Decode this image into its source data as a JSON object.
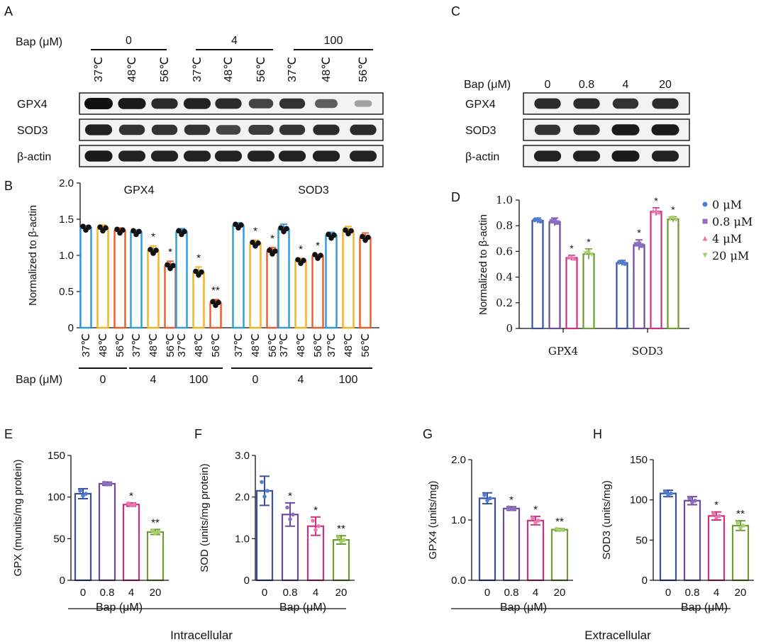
{
  "colors": {
    "navy": "#3a4fa0",
    "purple": "#6e4a9c",
    "magenta": "#d0317e",
    "olive": "#6f9a36",
    "blue": "#2a9bd8",
    "yellow": "#f5b21f",
    "orange": "#ee5a25",
    "dot": "#111111",
    "blue_dot": "#4f7fd0",
    "purple_dot": "#8a6fc0",
    "pink_dot": "#e87ab0",
    "green_dot": "#a8cf6f",
    "band": "#111111",
    "blot_bg": "#f3f3f3"
  },
  "blot_a": {
    "panel_label": "A",
    "bap_label": "Bap (μM)",
    "groups": [
      "0",
      "4",
      "100"
    ],
    "lanes": [
      "37℃",
      "48℃",
      "56℃",
      "37℃",
      "48℃",
      "56℃",
      "37℃",
      "48℃",
      "56℃"
    ],
    "rows": [
      {
        "name": "GPX4",
        "intensity": [
          1.0,
          0.95,
          0.85,
          0.9,
          0.85,
          0.7,
          0.8,
          0.55,
          0.15
        ]
      },
      {
        "name": "SOD3",
        "intensity": [
          0.9,
          0.8,
          0.8,
          0.8,
          0.7,
          0.75,
          0.8,
          0.85,
          0.85
        ]
      },
      {
        "name": "β-actin",
        "intensity": [
          0.95,
          0.9,
          0.9,
          0.9,
          0.9,
          0.9,
          0.9,
          0.9,
          0.9
        ]
      }
    ]
  },
  "blot_c": {
    "panel_label": "C",
    "bap_label": "Bap (μM)",
    "lanes": [
      "0",
      "0.8",
      "4",
      "20"
    ],
    "rows": [
      {
        "name": "GPX4",
        "intensity": [
          0.85,
          0.85,
          0.8,
          0.85
        ]
      },
      {
        "name": "SOD3",
        "intensity": [
          0.8,
          0.85,
          0.95,
          0.95
        ]
      },
      {
        "name": "β-actin",
        "intensity": [
          0.9,
          0.9,
          0.95,
          0.9
        ]
      }
    ]
  },
  "chart_data": [
    {
      "id": "B",
      "panel_label": "B",
      "type": "bar",
      "ylabel": "Normalized to β-actin",
      "ylim": [
        0,
        2.0
      ],
      "yticks": [
        "0",
        "0.5",
        "1.0",
        "1.5",
        "2.0"
      ],
      "ytick_values": [
        0,
        0.5,
        1.0,
        1.5,
        2.0
      ],
      "titles": [
        "GPX4",
        "SOD3"
      ],
      "temps": [
        "37℃",
        "48℃",
        "56℃"
      ],
      "bap_label": "Bap (μM)",
      "bap_groups": [
        "0",
        "4",
        "100",
        "0",
        "4",
        "100"
      ],
      "series_names": [
        "37℃",
        "48℃",
        "56℃"
      ],
      "groups": [
        {
          "protein": "GPX4",
          "bap": "0",
          "values": [
            1.38,
            1.37,
            1.34
          ],
          "errors": [
            0.03,
            0.05,
            0.04
          ],
          "stars": [
            "",
            "",
            ""
          ]
        },
        {
          "protein": "GPX4",
          "bap": "4",
          "values": [
            1.32,
            1.06,
            0.85
          ],
          "errors": [
            0.03,
            0.07,
            0.07
          ],
          "stars": [
            "",
            "*",
            "*"
          ]
        },
        {
          "protein": "GPX4",
          "bap": "100",
          "values": [
            1.32,
            0.76,
            0.34
          ],
          "errors": [
            0.05,
            0.08,
            0.05
          ],
          "stars": [
            "",
            "*",
            "**"
          ]
        },
        {
          "protein": "SOD3",
          "bap": "0",
          "values": [
            1.41,
            1.16,
            1.05
          ],
          "errors": [
            0.04,
            0.05,
            0.06
          ],
          "stars": [
            "",
            "*",
            "*"
          ]
        },
        {
          "protein": "SOD3",
          "bap": "4",
          "values": [
            1.36,
            0.92,
            0.99
          ],
          "errors": [
            0.07,
            0.04,
            0.02
          ],
          "stars": [
            "",
            "*",
            "*"
          ]
        },
        {
          "protein": "SOD3",
          "bap": "100",
          "values": [
            1.27,
            1.33,
            1.24
          ],
          "errors": [
            0.05,
            0.07,
            0.07
          ],
          "stars": [
            "",
            "",
            ""
          ]
        }
      ]
    },
    {
      "id": "D",
      "panel_label": "D",
      "type": "bar",
      "ylabel": "Normalized to β-actin",
      "ylim": [
        0,
        1.0
      ],
      "yticks": [
        "0",
        "0.2",
        "0.4",
        "0.6",
        "0.8",
        "1.0"
      ],
      "ytick_values": [
        0,
        0.2,
        0.4,
        0.6,
        0.8,
        1.0
      ],
      "categories": [
        "GPX4",
        "SOD3"
      ],
      "legend_position": "right",
      "series": [
        {
          "name": "0 μM",
          "values": [
            0.84,
            0.51
          ],
          "errors": [
            0.02,
            0.02
          ],
          "stars": [
            "",
            ""
          ]
        },
        {
          "name": "0.8 μM",
          "values": [
            0.83,
            0.65
          ],
          "errors": [
            0.03,
            0.04
          ],
          "stars": [
            "",
            "*"
          ]
        },
        {
          "name": "4 μM",
          "values": [
            0.55,
            0.91
          ],
          "errors": [
            0.02,
            0.03
          ],
          "stars": [
            "*",
            "*"
          ]
        },
        {
          "name": "20 μM",
          "values": [
            0.58,
            0.85
          ],
          "errors": [
            0.04,
            0.02
          ],
          "stars": [
            "*",
            "*"
          ]
        }
      ]
    },
    {
      "id": "E",
      "panel_label": "E",
      "type": "bar",
      "ylabel": "GPX (munits/mg protein)",
      "xlabel": "Bap (μM)",
      "ylim": [
        0,
        150
      ],
      "yticks": [
        "0",
        "50",
        "100",
        "150"
      ],
      "ytick_values": [
        0,
        50,
        100,
        150
      ],
      "categories": [
        "0",
        "0.8",
        "4",
        "20"
      ],
      "values": [
        104,
        116,
        91,
        58
      ],
      "errors": [
        6,
        2,
        2,
        3
      ],
      "stars": [
        "",
        "",
        "*",
        "**"
      ]
    },
    {
      "id": "F",
      "panel_label": "F",
      "type": "bar",
      "ylabel": "SOD (units/mg protein)",
      "xlabel": "Bap (μM)",
      "ylim": [
        0,
        3.0
      ],
      "yticks": [
        "0",
        "1.0",
        "2.0",
        "3.0"
      ],
      "ytick_values": [
        0,
        1.0,
        2.0,
        3.0
      ],
      "categories": [
        "0",
        "0.8",
        "4",
        "20"
      ],
      "values": [
        2.15,
        1.58,
        1.3,
        0.97
      ],
      "errors": [
        0.35,
        0.28,
        0.22,
        0.1
      ],
      "stars": [
        "",
        "*",
        "*",
        "**"
      ]
    },
    {
      "id": "G",
      "panel_label": "G",
      "type": "bar",
      "ylabel": "GPX4 (units/mg)",
      "xlabel": "Bap (μM)",
      "ylim": [
        0,
        2.0
      ],
      "yticks": [
        "0.0",
        "1.0",
        "2.0"
      ],
      "ytick_values": [
        0,
        1.0,
        2.0
      ],
      "categories": [
        "0",
        "0.8",
        "4",
        "20"
      ],
      "values": [
        1.36,
        1.19,
        0.99,
        0.84
      ],
      "errors": [
        0.09,
        0.03,
        0.07,
        0.02
      ],
      "stars": [
        "",
        "*",
        "*",
        "**"
      ]
    },
    {
      "id": "H",
      "panel_label": "H",
      "type": "bar",
      "ylabel": "SOD3 (units/mg)",
      "xlabel": "Bap (μM)",
      "ylim": [
        0,
        150
      ],
      "yticks": [
        "0",
        "50",
        "100",
        "150"
      ],
      "ytick_values": [
        0,
        50,
        100,
        150
      ],
      "categories": [
        "0",
        "0.8",
        "4",
        "20"
      ],
      "values": [
        108,
        99,
        80,
        68
      ],
      "errors": [
        4,
        5,
        5,
        6
      ],
      "stars": [
        "",
        "",
        "*",
        "**"
      ]
    }
  ],
  "footers": {
    "intracellular": "Intracellular",
    "extracellular": "Extracellular"
  }
}
